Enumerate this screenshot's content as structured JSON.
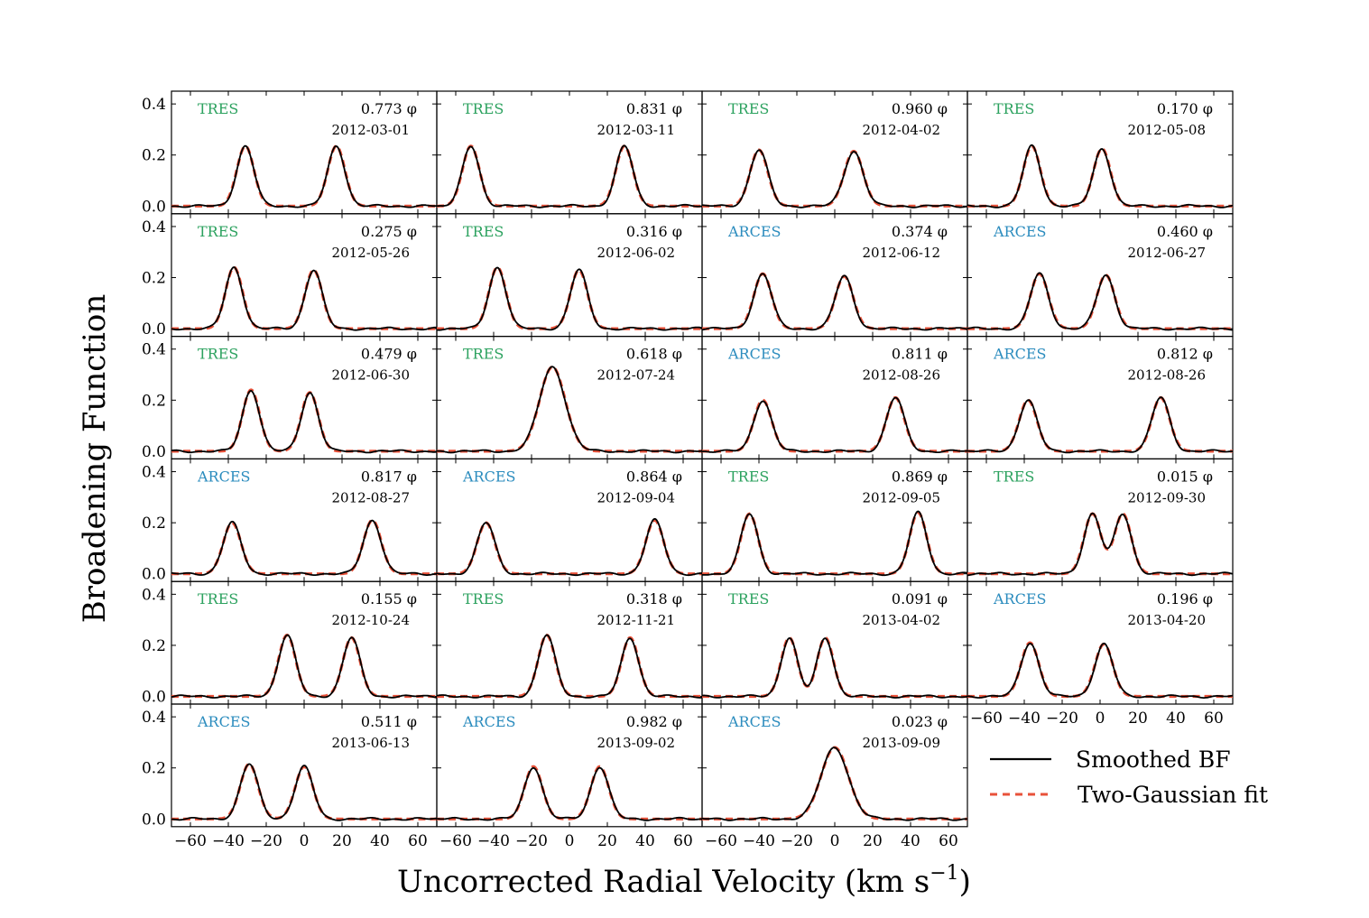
{
  "chart_data": {
    "type": "line",
    "xlabel": "Uncorrected Radial Velocity (km s",
    "xlabel_superscript": "−1",
    "xlabel_close": ")",
    "ylabel": "Broadening Function",
    "xlim": [
      -70,
      70
    ],
    "ylim": [
      -0.03,
      0.45
    ],
    "xticks": [
      -60,
      -40,
      -20,
      0,
      20,
      40,
      60
    ],
    "yticks": [
      0.0,
      0.2,
      0.4
    ],
    "xtick_labels": [
      "−60",
      "−40",
      "−20",
      "0",
      "20",
      "40",
      "60"
    ],
    "ytick_labels": [
      "0.0",
      "0.2",
      "0.4"
    ],
    "grid": false,
    "layout": {
      "rows": 6,
      "cols": 4
    },
    "instrument_colors": {
      "TRES": "#2ca25f",
      "ARCES": "#2b8cbe"
    },
    "series_styles": {
      "smoothed_bf": {
        "color": "#000000",
        "dash": "solid"
      },
      "fit": {
        "color": "#e8523a",
        "dash": "dashed"
      }
    },
    "legend": {
      "placement": "lower-right",
      "entries": [
        {
          "label": "Smoothed BF",
          "style": "smoothed_bf"
        },
        {
          "label": "Two-Gaussian fit",
          "style": "fit"
        }
      ]
    },
    "phase_suffix": "φ",
    "panels": [
      {
        "instrument": "TRES",
        "phase": "0.773",
        "date": "2012-03-01",
        "peaks": [
          {
            "v": -31,
            "a": 0.235,
            "s": 4.5
          },
          {
            "v": 17,
            "a": 0.235,
            "s": 4.5
          }
        ]
      },
      {
        "instrument": "TRES",
        "phase": "0.831",
        "date": "2012-03-11",
        "peaks": [
          {
            "v": -52,
            "a": 0.235,
            "s": 4.5
          },
          {
            "v": 29,
            "a": 0.235,
            "s": 4.5
          }
        ]
      },
      {
        "instrument": "TRES",
        "phase": "0.960",
        "date": "2012-04-02",
        "peaks": [
          {
            "v": -40,
            "a": 0.22,
            "s": 4.7
          },
          {
            "v": 10,
            "a": 0.215,
            "s": 5
          }
        ]
      },
      {
        "instrument": "TRES",
        "phase": "0.170",
        "date": "2012-05-08",
        "peaks": [
          {
            "v": -36,
            "a": 0.235,
            "s": 4.5
          },
          {
            "v": 1,
            "a": 0.225,
            "s": 4.5
          }
        ]
      },
      {
        "instrument": "TRES",
        "phase": "0.275",
        "date": "2012-05-26",
        "peaks": [
          {
            "v": -37,
            "a": 0.24,
            "s": 4.5
          },
          {
            "v": 5,
            "a": 0.23,
            "s": 4.5
          }
        ]
      },
      {
        "instrument": "TRES",
        "phase": "0.316",
        "date": "2012-06-02",
        "peaks": [
          {
            "v": -38,
            "a": 0.24,
            "s": 4.5
          },
          {
            "v": 5,
            "a": 0.23,
            "s": 4.5
          }
        ]
      },
      {
        "instrument": "ARCES",
        "phase": "0.374",
        "date": "2012-06-12",
        "peaks": [
          {
            "v": -38,
            "a": 0.215,
            "s": 4.7
          },
          {
            "v": 5,
            "a": 0.205,
            "s": 4.7
          }
        ]
      },
      {
        "instrument": "ARCES",
        "phase": "0.460",
        "date": "2012-06-27",
        "peaks": [
          {
            "v": -32,
            "a": 0.215,
            "s": 4.7
          },
          {
            "v": 3,
            "a": 0.21,
            "s": 4.7
          }
        ]
      },
      {
        "instrument": "TRES",
        "phase": "0.479",
        "date": "2012-06-30",
        "peaks": [
          {
            "v": -28,
            "a": 0.24,
            "s": 4.5
          },
          {
            "v": 3,
            "a": 0.23,
            "s": 4.5
          }
        ]
      },
      {
        "instrument": "TRES",
        "phase": "0.618",
        "date": "2012-07-24",
        "peaks": [
          {
            "v": -9,
            "a": 0.33,
            "s": 6.8
          }
        ]
      },
      {
        "instrument": "ARCES",
        "phase": "0.811",
        "date": "2012-08-26",
        "peaks": [
          {
            "v": -38,
            "a": 0.2,
            "s": 4.7
          },
          {
            "v": 32,
            "a": 0.21,
            "s": 4.7
          }
        ]
      },
      {
        "instrument": "ARCES",
        "phase": "0.812",
        "date": "2012-08-26",
        "peaks": [
          {
            "v": -38,
            "a": 0.2,
            "s": 4.7
          },
          {
            "v": 32,
            "a": 0.21,
            "s": 4.7
          }
        ]
      },
      {
        "instrument": "ARCES",
        "phase": "0.817",
        "date": "2012-08-27",
        "peaks": [
          {
            "v": -38,
            "a": 0.2,
            "s": 4.7
          },
          {
            "v": 36,
            "a": 0.21,
            "s": 4.7
          }
        ]
      },
      {
        "instrument": "ARCES",
        "phase": "0.864",
        "date": "2012-09-04",
        "peaks": [
          {
            "v": -44,
            "a": 0.2,
            "s": 4.7
          },
          {
            "v": 45,
            "a": 0.21,
            "s": 4.7
          }
        ]
      },
      {
        "instrument": "TRES",
        "phase": "0.869",
        "date": "2012-09-05",
        "peaks": [
          {
            "v": -45,
            "a": 0.235,
            "s": 4.5
          },
          {
            "v": 44,
            "a": 0.24,
            "s": 4.5
          }
        ]
      },
      {
        "instrument": "TRES",
        "phase": "0.015",
        "date": "2012-09-30",
        "peaks": [
          {
            "v": -4,
            "a": 0.235,
            "s": 4.5
          },
          {
            "v": 12,
            "a": 0.235,
            "s": 4.5
          }
        ]
      },
      {
        "instrument": "TRES",
        "phase": "0.155",
        "date": "2012-10-24",
        "peaks": [
          {
            "v": -9,
            "a": 0.24,
            "s": 4.5
          },
          {
            "v": 25,
            "a": 0.23,
            "s": 4.5
          }
        ]
      },
      {
        "instrument": "TRES",
        "phase": "0.318",
        "date": "2012-11-21",
        "peaks": [
          {
            "v": -12,
            "a": 0.24,
            "s": 4.5
          },
          {
            "v": 32,
            "a": 0.23,
            "s": 4.5
          }
        ]
      },
      {
        "instrument": "TRES",
        "phase": "0.091",
        "date": "2013-04-02",
        "peaks": [
          {
            "v": -24,
            "a": 0.23,
            "s": 4.3
          },
          {
            "v": -5,
            "a": 0.23,
            "s": 4.3
          }
        ]
      },
      {
        "instrument": "ARCES",
        "phase": "0.196",
        "date": "2013-04-20",
        "peaks": [
          {
            "v": -37,
            "a": 0.21,
            "s": 4.7
          },
          {
            "v": 2,
            "a": 0.205,
            "s": 4.7
          }
        ]
      },
      {
        "instrument": "ARCES",
        "phase": "0.511",
        "date": "2013-06-13",
        "peaks": [
          {
            "v": -29,
            "a": 0.215,
            "s": 4.7
          },
          {
            "v": 0,
            "a": 0.205,
            "s": 4.7
          }
        ]
      },
      {
        "instrument": "ARCES",
        "phase": "0.982",
        "date": "2013-09-02",
        "peaks": [
          {
            "v": -19,
            "a": 0.205,
            "s": 4.7
          },
          {
            "v": 16,
            "a": 0.205,
            "s": 4.7
          }
        ]
      },
      {
        "instrument": "ARCES",
        "phase": "0.023",
        "date": "2013-09-09",
        "peaks": [
          {
            "v": 0,
            "a": 0.28,
            "s": 7.2
          }
        ]
      }
    ]
  }
}
